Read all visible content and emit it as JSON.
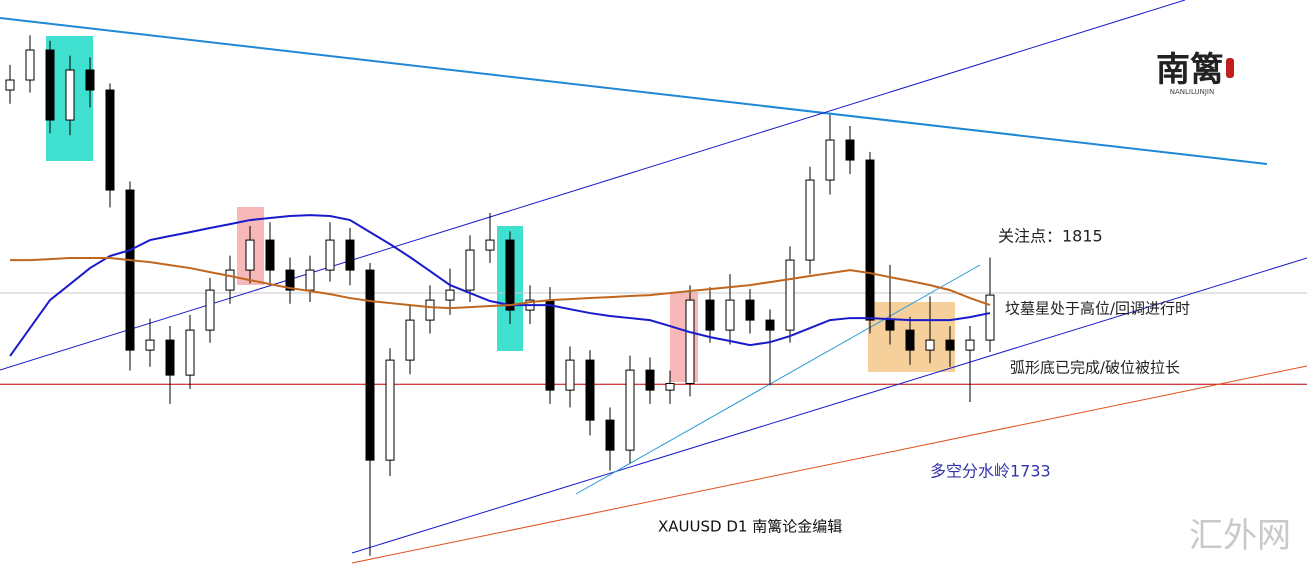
{
  "chart_data": {
    "type": "candlestick",
    "title": "XAUUSD  D1  南篱论金编辑",
    "ylim": [
      1615,
      1920
    ],
    "open": [
      1871.4,
      1876.8,
      1893,
      1855.2,
      1882.2,
      1871.4,
      1817.4,
      1731,
      1736.4,
      1717.5,
      1741.8,
      1763.4,
      1774.2,
      1790.4,
      1774.2,
      1763.4,
      1774.2,
      1790.4,
      1774.2,
      1671.6,
      1725.6,
      1747.2,
      1758,
      1763.4,
      1785,
      1790.4,
      1752.6,
      1758,
      1709.4,
      1725.6,
      1693.2,
      1677,
      1720.2,
      1709.4,
      1713,
      1758,
      1741.8,
      1758,
      1747.2,
      1741.8,
      1779.6,
      1822.8,
      1844.4,
      1833.6,
      1747.2,
      1741.8,
      1731,
      1736.4,
      1731,
      1736.4
    ],
    "high": [
      1885,
      1901,
      1898,
      1890,
      1889,
      1875,
      1822,
      1748,
      1744,
      1750,
      1770,
      1782,
      1798,
      1800,
      1781,
      1782,
      1800,
      1797,
      1778,
      1732,
      1755,
      1766,
      1775,
      1793,
      1805,
      1795,
      1766,
      1765,
      1733,
      1731,
      1700,
      1728,
      1727,
      1720,
      1766,
      1765,
      1772,
      1764,
      1753,
      1787,
      1830,
      1858,
      1852,
      1838,
      1777,
      1749,
      1760,
      1744,
      1744,
      1781
    ],
    "low": [
      1864,
      1870,
      1848,
      1847,
      1862,
      1808,
      1720,
      1722,
      1702,
      1710,
      1735,
      1756,
      1767,
      1766,
      1756,
      1757,
      1768,
      1766,
      1620,
      1663,
      1718,
      1740,
      1750,
      1757,
      1778,
      1745,
      1745,
      1702,
      1700,
      1685,
      1666,
      1670,
      1702,
      1702,
      1706,
      1735,
      1734,
      1740,
      1712,
      1735,
      1772,
      1815,
      1826,
      1740,
      1734,
      1723,
      1724,
      1722,
      1703,
      1730
    ],
    "close": [
      1876.8,
      1893,
      1855.2,
      1882.2,
      1871.4,
      1817.4,
      1731,
      1736.4,
      1717.5,
      1741.8,
      1763.4,
      1774.2,
      1790.4,
      1774.2,
      1763.4,
      1774.2,
      1790.4,
      1774.2,
      1671.6,
      1725.6,
      1747.2,
      1758,
      1763.4,
      1785,
      1790.4,
      1752.6,
      1758,
      1709.4,
      1725.6,
      1693.2,
      1677,
      1720.2,
      1709.4,
      1713,
      1758,
      1741.8,
      1758,
      1747.2,
      1741.8,
      1779.6,
      1822.8,
      1844.4,
      1833.6,
      1747.2,
      1741.8,
      1731,
      1736.4,
      1731,
      1736.4,
      1760.7
    ],
    "series": [
      {
        "color": "#1a1acc",
        "values": [
          1727.8,
          1742.9,
          1758,
          1766.6,
          1775.3,
          1781.8,
          1785,
          1790.4,
          1792.6,
          1794.7,
          1796.9,
          1799,
          1801.2,
          1802.3,
          1803.4,
          1803.9,
          1803.4,
          1801.2,
          1794.7,
          1788.2,
          1781.2,
          1773.7,
          1766.1,
          1761.8,
          1757.5,
          1755.3,
          1755.3,
          1755.3,
          1753.1,
          1751,
          1749.4,
          1748.3,
          1747.2,
          1744,
          1740.7,
          1738,
          1735.9,
          1733.7,
          1735.3,
          1738.6,
          1742.9,
          1747.2,
          1748.3,
          1748.3,
          1747.7,
          1747.2,
          1747.2,
          1747.2,
          1748.8,
          1751
        ]
      },
      {
        "color": "#c0661e",
        "values": [
          1779.6,
          1779.6,
          1780.1,
          1780.7,
          1780.7,
          1780.7,
          1779.6,
          1778.5,
          1776.9,
          1775.3,
          1773.1,
          1771,
          1768.8,
          1766.6,
          1764.5,
          1762.9,
          1761.2,
          1759.1,
          1757.5,
          1756.4,
          1755.3,
          1754.2,
          1753.7,
          1754.2,
          1754.8,
          1755.3,
          1756.9,
          1758,
          1758.5,
          1759.1,
          1759.6,
          1760.2,
          1760.7,
          1761.8,
          1762.9,
          1763.9,
          1765,
          1766.1,
          1767.7,
          1769.3,
          1771,
          1772.6,
          1774.2,
          1772.6,
          1770.4,
          1768.3,
          1766.1,
          1763.4,
          1759.1,
          1755.3
        ]
      }
    ],
    "levels": [
      {
        "value": 1761.8,
        "color": "#c8c8c8"
      },
      {
        "value": 1712.6,
        "color": "#c00000"
      }
    ],
    "annotations": [
      "关注点：1815",
      "坟墓星处于高位/回调进行时",
      "弧形底已完成/破位被拉长",
      "多空分水岭1733"
    ],
    "watermark": "汇外网",
    "logo": {
      "name": "南篱",
      "sub": "NANLILUNJIN"
    }
  }
}
